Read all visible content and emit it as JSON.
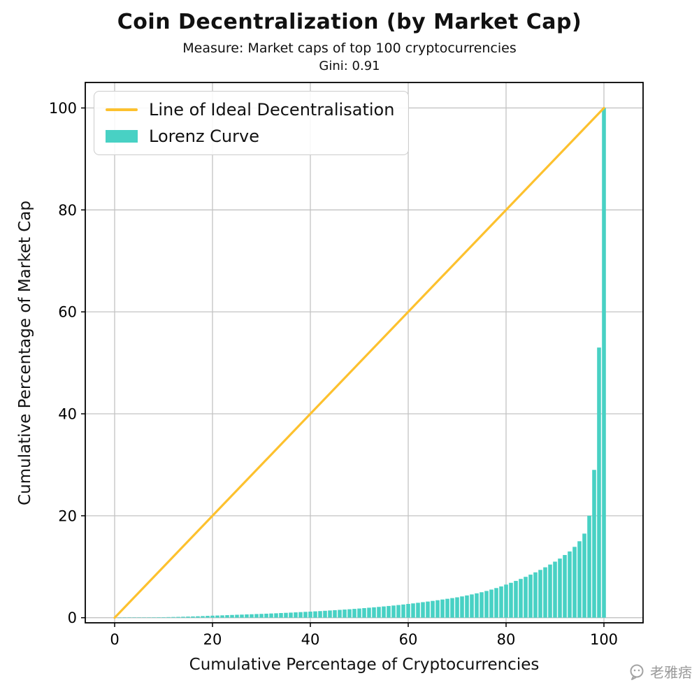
{
  "title": "Coin Decentralization (by Market Cap)",
  "subtitle": "Measure: Market caps of top 100 cryptocurrencies",
  "gini_label": "Gini: 0.91",
  "watermark": {
    "text": "老雅痞",
    "icon": "chat-bubble-logo"
  },
  "chart_data": {
    "type": "bar",
    "title": "Coin Decentralization (by Market Cap)",
    "subtitle": "Measure: Market caps of top 100 cryptocurrencies",
    "gini": 0.91,
    "xlabel": "Cumulative Percentage of Cryptocurrencies",
    "ylabel": "Cumulative Percentage of Market Cap",
    "xlim": [
      -6,
      108
    ],
    "ylim": [
      -1,
      105
    ],
    "x_ticks": [
      0,
      20,
      40,
      60,
      80,
      100
    ],
    "y_ticks": [
      0,
      20,
      40,
      60,
      80,
      100
    ],
    "grid": true,
    "grid_color": "#c3c3c3",
    "background": "#ffffff",
    "legend": {
      "position": "upper-left",
      "entries": [
        {
          "label": "Line of Ideal Decentralisation",
          "type": "line",
          "color": "#fdc12e"
        },
        {
          "label": "Lorenz Curve",
          "type": "bar",
          "color": "#48d1c4"
        }
      ]
    },
    "ideal_line": {
      "x": [
        0,
        100
      ],
      "y": [
        0,
        100
      ],
      "color": "#fdc12e",
      "width": 3.2
    },
    "lorenz": {
      "x_start": 1,
      "x_end": 100,
      "bar_width": 0.8,
      "color": "#48d1c4",
      "cumulative_values": [
        0.01,
        0.02,
        0.03,
        0.04,
        0.05,
        0.06,
        0.07,
        0.08,
        0.09,
        0.1,
        0.12,
        0.14,
        0.16,
        0.19,
        0.22,
        0.25,
        0.28,
        0.32,
        0.36,
        0.4,
        0.43,
        0.46,
        0.5,
        0.54,
        0.58,
        0.61,
        0.65,
        0.68,
        0.72,
        0.75,
        0.79,
        0.83,
        0.87,
        0.92,
        0.96,
        1.0,
        1.05,
        1.1,
        1.15,
        1.2,
        1.25,
        1.3,
        1.36,
        1.42,
        1.48,
        1.54,
        1.6,
        1.66,
        1.73,
        1.8,
        1.88,
        1.96,
        2.04,
        2.12,
        2.21,
        2.3,
        2.39,
        2.49,
        2.59,
        2.7,
        2.81,
        2.93,
        3.05,
        3.17,
        3.3,
        3.43,
        3.57,
        3.71,
        3.85,
        4.0,
        4.18,
        4.37,
        4.57,
        4.78,
        5.0,
        5.25,
        5.52,
        5.82,
        6.14,
        6.5,
        6.85,
        7.22,
        7.61,
        8.02,
        8.45,
        8.9,
        9.38,
        9.89,
        10.43,
        11.0,
        11.6,
        12.3,
        13.0,
        13.9,
        15.0,
        16.5,
        20.0,
        29.0,
        53.0,
        100.0
      ]
    }
  }
}
